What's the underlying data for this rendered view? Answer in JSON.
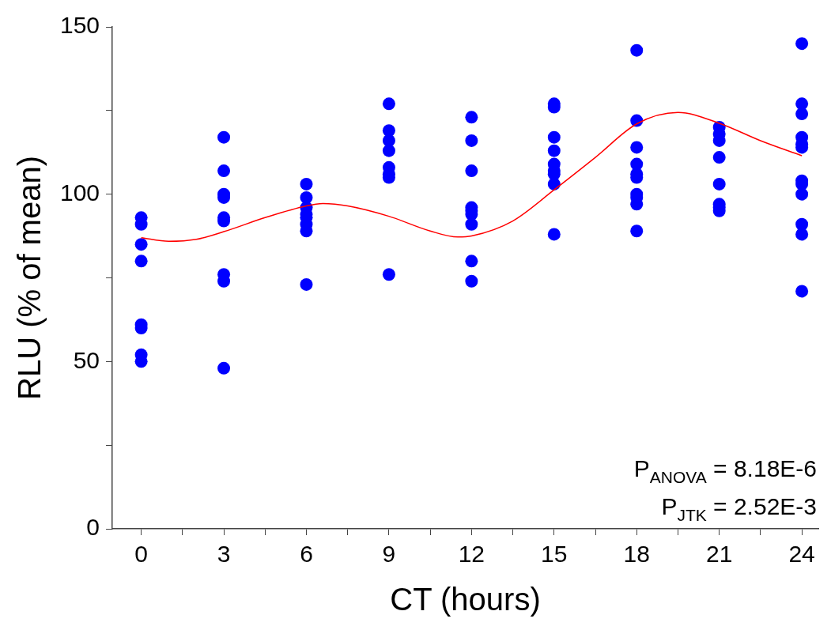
{
  "chart_data": {
    "type": "scatter",
    "xlabel": "CT (hours)",
    "ylabel": "RLU (% of mean)",
    "xlim": [
      -1.05,
      24.6
    ],
    "xticks": [
      0,
      {
        "value": 1.5,
        "label": null
      },
      3,
      {
        "value": 4.5,
        "label": null
      },
      6,
      {
        "value": 7.5,
        "label": null
      },
      9,
      {
        "value": 10.5,
        "label": null
      },
      12,
      {
        "value": 13.5,
        "label": null
      },
      15,
      {
        "value": 16.5,
        "label": null
      },
      18,
      {
        "value": 19.5,
        "label": null
      },
      21,
      {
        "value": 22.5,
        "label": null
      },
      24
    ],
    "ylim": [
      0,
      150
    ],
    "yticks": [
      0,
      {
        "value": 25,
        "label": null
      },
      50,
      {
        "value": 75,
        "label": null
      },
      100,
      {
        "value": 125,
        "label": null
      },
      150
    ],
    "grid": false,
    "legend": false,
    "marker": "circle",
    "series": [
      {
        "type": "scatter",
        "color": "#0000ff",
        "x": [
          0,
          0,
          0,
          0,
          0,
          0,
          0,
          0,
          3,
          3,
          3,
          3,
          3,
          3,
          3,
          3,
          3,
          6,
          6,
          6,
          6,
          6,
          6,
          6,
          6,
          9,
          9,
          9,
          9,
          9,
          9,
          9,
          9,
          12,
          12,
          12,
          12,
          12,
          12,
          12,
          12,
          12,
          15,
          15,
          15,
          15,
          15,
          15,
          15,
          15,
          15,
          18,
          18,
          18,
          18,
          18,
          18,
          18,
          18,
          18,
          18,
          21,
          21,
          21,
          21,
          21,
          21,
          21,
          21,
          24,
          24,
          24,
          24,
          24,
          24,
          24,
          24,
          24,
          24,
          24,
          24
        ],
        "values": [
          93,
          91,
          85,
          80,
          61,
          60,
          52,
          50,
          117,
          107,
          100,
          99,
          93,
          92,
          76,
          74,
          48,
          103,
          99,
          96,
          94,
          93,
          91,
          89,
          73,
          127,
          119,
          116,
          113,
          108,
          106,
          105,
          76,
          123,
          116,
          107,
          96,
          95,
          94,
          91,
          80,
          74,
          127,
          126,
          117,
          113,
          109,
          107,
          106,
          103,
          88,
          143,
          122,
          114,
          109,
          106,
          105,
          100,
          99,
          97,
          89,
          120,
          118,
          116,
          111,
          103,
          97,
          96,
          95,
          145,
          127,
          124,
          117,
          115,
          114,
          104,
          103,
          100,
          91,
          88,
          71
        ]
      },
      {
        "type": "line",
        "color": "#ff0000",
        "marker": "none",
        "line_style": "solid",
        "x": [
          0,
          1,
          2,
          3,
          4.5,
          6,
          6.6,
          7.5,
          9,
          10.5,
          11.5,
          12,
          13.5,
          15,
          16.5,
          18,
          19.5,
          21,
          22.5,
          24
        ],
        "values": [
          87,
          85.9,
          86.5,
          88.8,
          93,
          96.5,
          97.2,
          96.5,
          93.4,
          89,
          87.2,
          87.5,
          92,
          101.3,
          111,
          121,
          124.4,
          121.2,
          116,
          111.5
        ]
      }
    ],
    "annotations": [
      "P$_{ANOVA}$ = 8.18E-6",
      "P$_{JTK}$ = 2.52E-3"
    ]
  }
}
